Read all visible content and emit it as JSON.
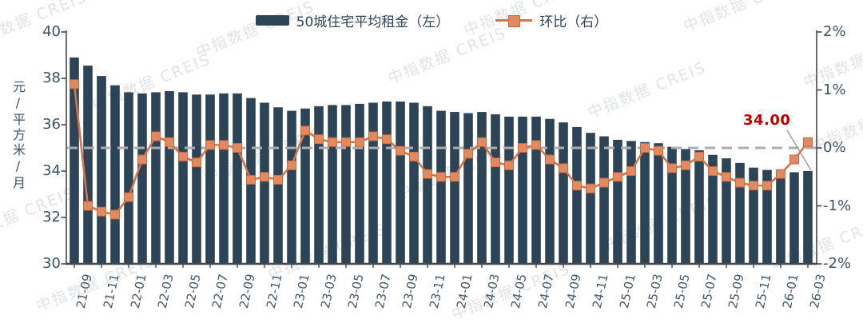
{
  "watermark": {
    "text": "中指数据 CREIS"
  },
  "legend": {
    "series1_label": "50城住宅平均租金（左）",
    "series2_label": "环比（右）"
  },
  "y_left": {
    "title": "元/平方米/月",
    "ticks": [
      "40",
      "38",
      "36",
      "34",
      "32",
      "30"
    ]
  },
  "y_right": {
    "ticks": [
      "2%",
      "1%",
      "0%",
      "-1%",
      "-2%"
    ]
  },
  "annotation": {
    "text": "34.00"
  },
  "colors": {
    "bar": "#2d4457",
    "line": "#d4744b",
    "marker_fill": "#e18a61",
    "marker_stroke": "#c96a41",
    "zero_line": "#adadad",
    "axis": "#474747",
    "axis_text": "#3d5269",
    "annotation": "#c00000",
    "leader": "#a3a3a3"
  },
  "chart_data": {
    "type": "bar+line",
    "title": "",
    "x": [
      "21-09",
      "21-10",
      "21-11",
      "21-12",
      "22-01",
      "22-02",
      "22-03",
      "22-04",
      "22-05",
      "22-06",
      "22-07",
      "22-08",
      "22-09",
      "22-10",
      "22-11",
      "22-12",
      "23-01",
      "23-02",
      "23-03",
      "23-04",
      "23-05",
      "23-06",
      "23-07",
      "23-08",
      "23-09",
      "23-10",
      "23-11",
      "23-12",
      "24-01",
      "24-02",
      "24-03",
      "24-04",
      "24-05",
      "24-06",
      "24-07",
      "24-08",
      "24-09",
      "24-10",
      "24-11",
      "24-12",
      "25-01",
      "25-02",
      "25-03",
      "25-04",
      "25-05",
      "25-06",
      "25-07",
      "25-08",
      "25-09",
      "25-10",
      "25-11",
      "25-12",
      "26-01",
      "26-02",
      "26-03"
    ],
    "x_tick_labels": [
      "21-09",
      "21-11",
      "22-01",
      "22-03",
      "22-05",
      "22-07",
      "22-09",
      "22-11",
      "23-01",
      "23-03",
      "23-05",
      "23-07",
      "23-09",
      "23-11",
      "24-01",
      "24-03",
      "24-05",
      "24-07",
      "24-09",
      "24-11",
      "25-01",
      "25-03",
      "25-05",
      "25-07",
      "25-09",
      "25-11",
      "26-01",
      "26-03"
    ],
    "series": [
      {
        "name": "50城住宅平均租金（左）",
        "type": "bar",
        "axis": "left",
        "values": [
          38.9,
          38.55,
          38.1,
          37.7,
          37.4,
          37.35,
          37.4,
          37.45,
          37.4,
          37.3,
          37.3,
          37.35,
          37.35,
          37.15,
          36.95,
          36.75,
          36.6,
          36.7,
          36.8,
          36.85,
          36.85,
          36.9,
          36.95,
          37.0,
          37.0,
          36.95,
          36.8,
          36.6,
          36.55,
          36.5,
          36.55,
          36.45,
          36.35,
          36.35,
          36.35,
          36.25,
          36.1,
          35.9,
          35.65,
          35.5,
          35.35,
          35.3,
          35.25,
          35.2,
          35.05,
          34.95,
          34.9,
          34.7,
          34.55,
          34.35,
          34.15,
          34.05,
          33.95,
          33.95,
          34.0
        ]
      },
      {
        "name": "环比（右）",
        "type": "line",
        "axis": "right",
        "values": [
          1.1,
          -1.0,
          -1.1,
          -1.15,
          -0.85,
          -0.2,
          0.2,
          0.1,
          -0.15,
          -0.25,
          0.05,
          0.05,
          0.0,
          -0.55,
          -0.5,
          -0.55,
          -0.3,
          0.3,
          0.15,
          0.1,
          0.1,
          0.1,
          0.2,
          0.15,
          -0.05,
          -0.15,
          -0.45,
          -0.5,
          -0.5,
          -0.1,
          0.1,
          -0.25,
          -0.3,
          0.0,
          0.05,
          -0.2,
          -0.35,
          -0.65,
          -0.7,
          -0.6,
          -0.5,
          -0.4,
          0.0,
          -0.05,
          -0.35,
          -0.3,
          -0.15,
          -0.4,
          -0.5,
          -0.6,
          -0.65,
          -0.65,
          -0.45,
          -0.2,
          0.1
        ]
      }
    ],
    "ylim_left": [
      30,
      40
    ],
    "ylim_right": [
      -2,
      2
    ],
    "y_left_label": "元/平方米/月",
    "zero_line": true,
    "last_value_label": "34.00",
    "legend_position": "top"
  }
}
